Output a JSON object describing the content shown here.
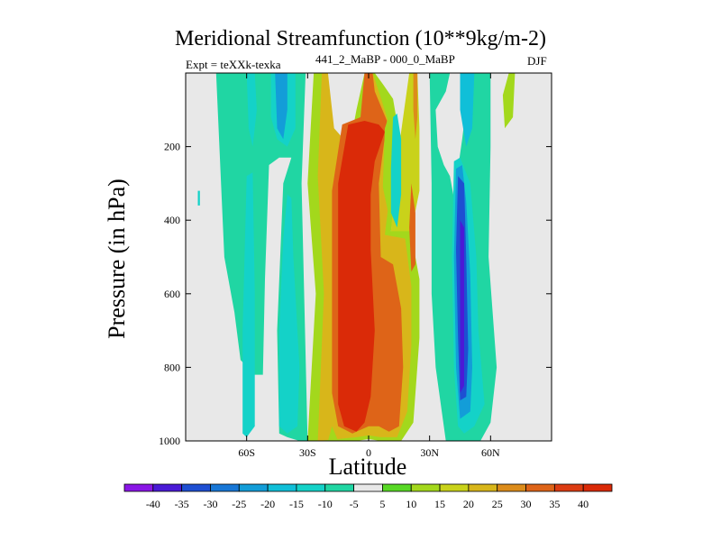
{
  "chart_data": {
    "type": "heatmap",
    "title": "Meridional Streamfunction (10**9kg/m-2)",
    "experiment_label": "Expt = teXXk-texka",
    "subtitle": "441_2_MaBP - 000_0_MaBP",
    "season": "DJF",
    "xlabel": "Latitude",
    "ylabel": "Pressure (in hPa)",
    "x_ticks": [
      {
        "value": -60,
        "label": "60S"
      },
      {
        "value": -30,
        "label": "30S"
      },
      {
        "value": 0,
        "label": "0"
      },
      {
        "value": 30,
        "label": "30N"
      },
      {
        "value": 60,
        "label": "60N"
      }
    ],
    "y_ticks": [
      {
        "value": 200,
        "label": "200"
      },
      {
        "value": 400,
        "label": "400"
      },
      {
        "value": 600,
        "label": "600"
      },
      {
        "value": 800,
        "label": "800"
      },
      {
        "value": 1000,
        "label": "1000"
      }
    ],
    "xlim": [
      -90,
      90
    ],
    "ylim": [
      0,
      1000
    ],
    "colorbar": {
      "labels": [
        "-40",
        "-35",
        "-30",
        "-25",
        "-20",
        "-15",
        "-10",
        "-5",
        "5",
        "10",
        "15",
        "20",
        "25",
        "30",
        "35",
        "40"
      ],
      "colors": [
        "#8a16e6",
        "#4a1ad6",
        "#1e4fd2",
        "#1877d6",
        "#139dd8",
        "#10bfd8",
        "#14d2c8",
        "#20d6a3",
        "#e8e8e8",
        "#58d825",
        "#a3d81c",
        "#c9d21a",
        "#d8b61a",
        "#dc8c1a",
        "#de6418",
        "#dc3c12",
        "#da2a08"
      ]
    },
    "regions": [
      {
        "level": 10,
        "points": [
          [
            -30,
            1000
          ],
          [
            -26,
            600
          ],
          [
            -30,
            300
          ],
          [
            -27,
            0
          ],
          [
            -21,
            0
          ],
          [
            -19,
            150
          ],
          [
            -11,
            250
          ],
          [
            -6,
            100
          ],
          [
            -2,
            0
          ],
          [
            3,
            0
          ],
          [
            7,
            30
          ],
          [
            12,
            70
          ],
          [
            16,
            200
          ],
          [
            11,
            430
          ],
          [
            20,
            410
          ],
          [
            25,
            560
          ],
          [
            25,
            720
          ],
          [
            22,
            950
          ],
          [
            16,
            1000
          ],
          [
            6,
            1000
          ],
          [
            0,
            995
          ],
          [
            -6,
            1000
          ]
        ]
      },
      {
        "level": 20,
        "points": [
          [
            -25,
            1000
          ],
          [
            -22,
            600
          ],
          [
            -25,
            280
          ],
          [
            -23,
            0
          ],
          [
            -20,
            0
          ],
          [
            -17,
            150
          ],
          [
            -9,
            200
          ],
          [
            -4,
            150
          ],
          [
            -1,
            0
          ],
          [
            2,
            0
          ],
          [
            5,
            50
          ],
          [
            9,
            120
          ],
          [
            13,
            210
          ],
          [
            8,
            440
          ],
          [
            18,
            450
          ],
          [
            21,
            580
          ],
          [
            21,
            740
          ],
          [
            19,
            920
          ],
          [
            14,
            990
          ],
          [
            6,
            990
          ],
          [
            0,
            985
          ],
          [
            -6,
            990
          ]
        ]
      },
      {
        "level": 30,
        "points": [
          [
            -18,
            870
          ],
          [
            -18,
            320
          ],
          [
            -13,
            140
          ],
          [
            -4,
            120
          ],
          [
            -2,
            0
          ],
          [
            2,
            0
          ],
          [
            3,
            50
          ],
          [
            9,
            130
          ],
          [
            5,
            300
          ],
          [
            6,
            500
          ],
          [
            12,
            520
          ],
          [
            16,
            640
          ],
          [
            17,
            800
          ],
          [
            15,
            960
          ],
          [
            10,
            975
          ],
          [
            5,
            960
          ],
          [
            0,
            960
          ],
          [
            -8,
            980
          ],
          [
            -15,
            960
          ]
        ]
      },
      {
        "level": 40,
        "points": [
          [
            -15,
            900
          ],
          [
            -15,
            300
          ],
          [
            -10,
            140
          ],
          [
            -2,
            130
          ],
          [
            5,
            140
          ],
          [
            8,
            160
          ],
          [
            3,
            240
          ],
          [
            1,
            330
          ],
          [
            1,
            480
          ],
          [
            3,
            700
          ],
          [
            1,
            880
          ],
          [
            -2,
            950
          ],
          [
            -6,
            975
          ],
          [
            -12,
            960
          ]
        ]
      },
      {
        "level": 15,
        "points": [
          [
            20,
            0
          ],
          [
            24,
            0
          ],
          [
            25,
            150
          ],
          [
            25,
            320
          ],
          [
            21,
            430
          ],
          [
            11,
            430
          ],
          [
            13,
            300
          ],
          [
            15,
            200
          ],
          [
            17,
            120
          ]
        ]
      },
      {
        "level": 10,
        "points": [
          [
            8,
            150
          ],
          [
            11,
            100
          ],
          [
            14,
            120
          ],
          [
            14,
            330
          ],
          [
            10,
            390
          ],
          [
            7,
            310
          ]
        ]
      },
      {
        "level": 25,
        "points": [
          [
            22,
            0
          ],
          [
            24,
            0
          ],
          [
            24,
            120
          ],
          [
            23,
            180
          ],
          [
            22,
            100
          ]
        ]
      },
      {
        "level": 30,
        "points": [
          [
            21,
            300
          ],
          [
            23,
            380
          ],
          [
            23,
            520
          ],
          [
            21,
            540
          ],
          [
            20,
            420
          ]
        ]
      },
      {
        "level": 30,
        "points": [
          [
            12,
            810
          ],
          [
            14,
            850
          ],
          [
            14,
            950
          ],
          [
            12,
            960
          ],
          [
            11,
            880
          ]
        ]
      },
      {
        "level": 10,
        "points": [
          [
            -40,
            400
          ],
          [
            -37,
            400
          ],
          [
            -37,
            780
          ],
          [
            -40,
            790
          ]
        ]
      },
      {
        "level": 10,
        "points": [
          [
            -20,
            1000
          ],
          [
            -15,
            1000
          ],
          [
            -18,
            960
          ]
        ]
      },
      {
        "level": 10,
        "points": [
          [
            69,
            0
          ],
          [
            72,
            0
          ],
          [
            71,
            120
          ],
          [
            67,
            150
          ],
          [
            66,
            60
          ]
        ]
      },
      {
        "level": -5,
        "points": [
          [
            -80,
            0
          ],
          [
            -31,
            0
          ],
          [
            -33,
            300
          ],
          [
            -30,
            1000
          ],
          [
            -34,
            1000
          ],
          [
            -40,
            990
          ],
          [
            -44,
            980
          ],
          [
            -45,
            700
          ],
          [
            -42,
            300
          ],
          [
            -38,
            230
          ],
          [
            -44,
            230
          ],
          [
            -49,
            250
          ],
          [
            -51,
            560
          ],
          [
            -52,
            820
          ],
          [
            -56,
            820
          ],
          [
            -63,
            780
          ],
          [
            -66,
            650
          ],
          [
            -71,
            500
          ],
          [
            -75,
            0
          ]
        ]
      },
      {
        "level": -10,
        "points": [
          [
            -60,
            0
          ],
          [
            -56,
            0
          ],
          [
            -55,
            100
          ],
          [
            -57,
            200
          ],
          [
            -59,
            150
          ]
        ]
      },
      {
        "level": -10,
        "points": [
          [
            -48,
            0
          ],
          [
            -36,
            0
          ],
          [
            -36,
            150
          ],
          [
            -40,
            200
          ],
          [
            -45,
            180
          ],
          [
            -48,
            120
          ]
        ]
      },
      {
        "level": -20,
        "points": [
          [
            -46,
            0
          ],
          [
            -40,
            0
          ],
          [
            -40,
            100
          ],
          [
            -42,
            180
          ],
          [
            -45,
            150
          ]
        ]
      },
      {
        "level": -10,
        "points": [
          [
            -40,
            330
          ],
          [
            -38,
            340
          ],
          [
            -37,
            500
          ],
          [
            -34,
            800
          ],
          [
            -35,
            960
          ],
          [
            -40,
            980
          ],
          [
            -44,
            960
          ],
          [
            -44,
            700
          ],
          [
            -42,
            450
          ]
        ]
      },
      {
        "level": -10,
        "points": [
          [
            -60,
            280
          ],
          [
            -57,
            270
          ],
          [
            -56,
            600
          ],
          [
            -56,
            960
          ],
          [
            -60,
            990
          ],
          [
            -62,
            980
          ],
          [
            -62,
            700
          ]
        ]
      },
      {
        "level": -5,
        "points": [
          [
            30,
            0
          ],
          [
            40,
            0
          ],
          [
            38,
            50
          ],
          [
            33,
            100
          ],
          [
            34,
            200
          ],
          [
            37,
            250
          ],
          [
            40,
            280
          ],
          [
            42,
            340
          ],
          [
            44,
            260
          ],
          [
            46,
            180
          ],
          [
            50,
            0
          ],
          [
            60,
            0
          ],
          [
            60,
            200
          ],
          [
            59,
            500
          ],
          [
            63,
            800
          ],
          [
            60,
            950
          ],
          [
            55,
            1000
          ],
          [
            38,
            1000
          ],
          [
            33,
            800
          ],
          [
            31,
            600
          ],
          [
            31,
            300
          ]
        ]
      },
      {
        "level": -10,
        "points": [
          [
            12,
            120
          ],
          [
            14,
            110
          ],
          [
            16,
            180
          ],
          [
            16,
            330
          ],
          [
            14,
            420
          ],
          [
            11,
            380
          ],
          [
            11,
            260
          ]
        ]
      },
      {
        "level": -15,
        "points": [
          [
            45,
            0
          ],
          [
            52,
            0
          ],
          [
            51,
            150
          ],
          [
            48,
            200
          ],
          [
            45,
            100
          ]
        ]
      },
      {
        "level": -10,
        "points": [
          [
            42,
            240
          ],
          [
            45,
            230
          ],
          [
            50,
            300
          ],
          [
            53,
            500
          ],
          [
            54,
            700
          ],
          [
            57,
            900
          ],
          [
            52,
            960
          ],
          [
            47,
            980
          ],
          [
            44,
            960
          ],
          [
            42,
            800
          ],
          [
            41,
            500
          ]
        ]
      },
      {
        "level": -20,
        "points": [
          [
            43,
            260
          ],
          [
            46,
            250
          ],
          [
            48,
            350
          ],
          [
            50,
            550
          ],
          [
            51,
            800
          ],
          [
            50,
            920
          ],
          [
            45,
            940
          ],
          [
            43,
            800
          ],
          [
            42,
            500
          ]
        ]
      },
      {
        "level": -30,
        "points": [
          [
            44,
            280
          ],
          [
            47,
            300
          ],
          [
            48,
            500
          ],
          [
            49,
            750
          ],
          [
            48,
            880
          ],
          [
            45,
            890
          ],
          [
            44,
            720
          ],
          [
            43,
            480
          ]
        ]
      },
      {
        "level": -35,
        "points": [
          [
            45,
            400
          ],
          [
            47,
            420
          ],
          [
            47,
            700
          ],
          [
            47,
            850
          ],
          [
            45,
            870
          ],
          [
            45,
            650
          ]
        ]
      },
      {
        "level": -10,
        "points": [
          [
            -84,
            320
          ],
          [
            -83,
            320
          ],
          [
            -83,
            360
          ],
          [
            -84,
            360
          ]
        ]
      }
    ]
  }
}
